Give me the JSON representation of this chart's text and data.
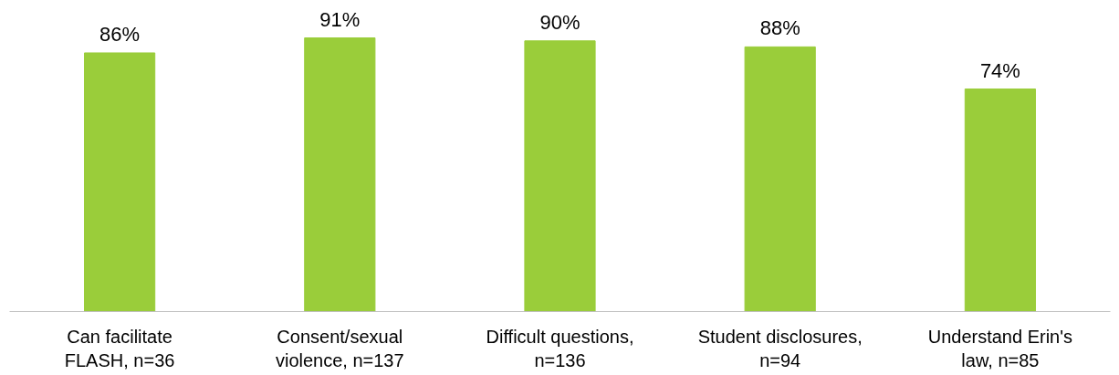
{
  "chart_data": {
    "type": "bar",
    "categories": [
      "Can facilitate FLASH, n=36",
      "Consent/sexual violence, n=137",
      "Difficult questions, n=136",
      "Student disclosures, n=94",
      "Understand Erin's law, n=85"
    ],
    "values": [
      86,
      91,
      90,
      88,
      74
    ],
    "value_labels": [
      "86%",
      "91%",
      "90%",
      "88%",
      "74%"
    ],
    "color": "#9acd3a",
    "tick_labels": "x"
  }
}
